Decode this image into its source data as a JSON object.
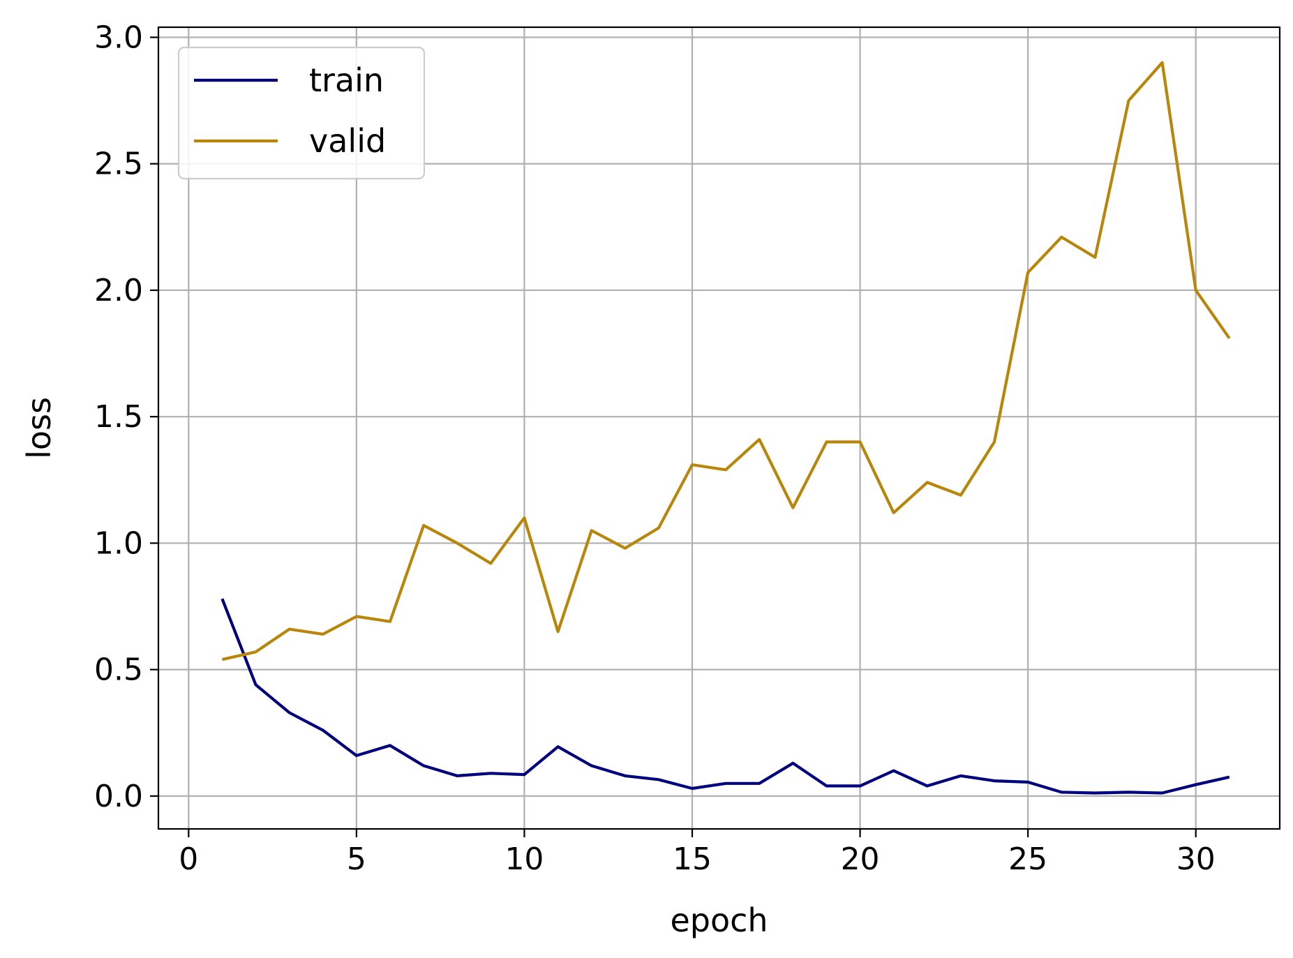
{
  "chart_data": {
    "type": "line",
    "xlabel": "epoch",
    "ylabel": "loss",
    "xlim": [
      -0.9,
      32.5
    ],
    "ylim": [
      -0.13,
      3.04
    ],
    "xticks": [
      0,
      5,
      10,
      15,
      20,
      25,
      30
    ],
    "yticks": [
      0.0,
      0.5,
      1.0,
      1.5,
      2.0,
      2.5,
      3.0
    ],
    "xtick_labels": [
      "0",
      "5",
      "10",
      "15",
      "20",
      "25",
      "30"
    ],
    "ytick_labels": [
      "0.0",
      "0.5",
      "1.0",
      "1.5",
      "2.0",
      "2.5",
      "3.0"
    ],
    "grid": true,
    "legend_position": "top-left",
    "x": [
      1,
      2,
      3,
      4,
      5,
      6,
      7,
      8,
      9,
      10,
      11,
      12,
      13,
      14,
      15,
      16,
      17,
      18,
      19,
      20,
      21,
      22,
      23,
      24,
      25,
      26,
      27,
      28,
      29,
      30,
      31
    ],
    "series": [
      {
        "name": "train",
        "color": "#00007f",
        "values": [
          0.78,
          0.44,
          0.33,
          0.26,
          0.16,
          0.2,
          0.12,
          0.08,
          0.09,
          0.085,
          0.195,
          0.12,
          0.08,
          0.065,
          0.03,
          0.05,
          0.05,
          0.13,
          0.04,
          0.04,
          0.1,
          0.04,
          0.08,
          0.06,
          0.055,
          0.015,
          0.012,
          0.015,
          0.012,
          0.045,
          0.075
        ]
      },
      {
        "name": "valid",
        "color": "#b8860b",
        "values": [
          0.54,
          0.57,
          0.66,
          0.64,
          0.71,
          0.69,
          1.07,
          1.0,
          0.92,
          1.1,
          0.65,
          1.05,
          0.98,
          1.06,
          1.31,
          1.29,
          1.41,
          1.14,
          1.4,
          1.4,
          1.12,
          1.24,
          1.19,
          1.4,
          2.07,
          2.21,
          2.13,
          2.75,
          2.9,
          2.0,
          1.81
        ]
      }
    ]
  }
}
